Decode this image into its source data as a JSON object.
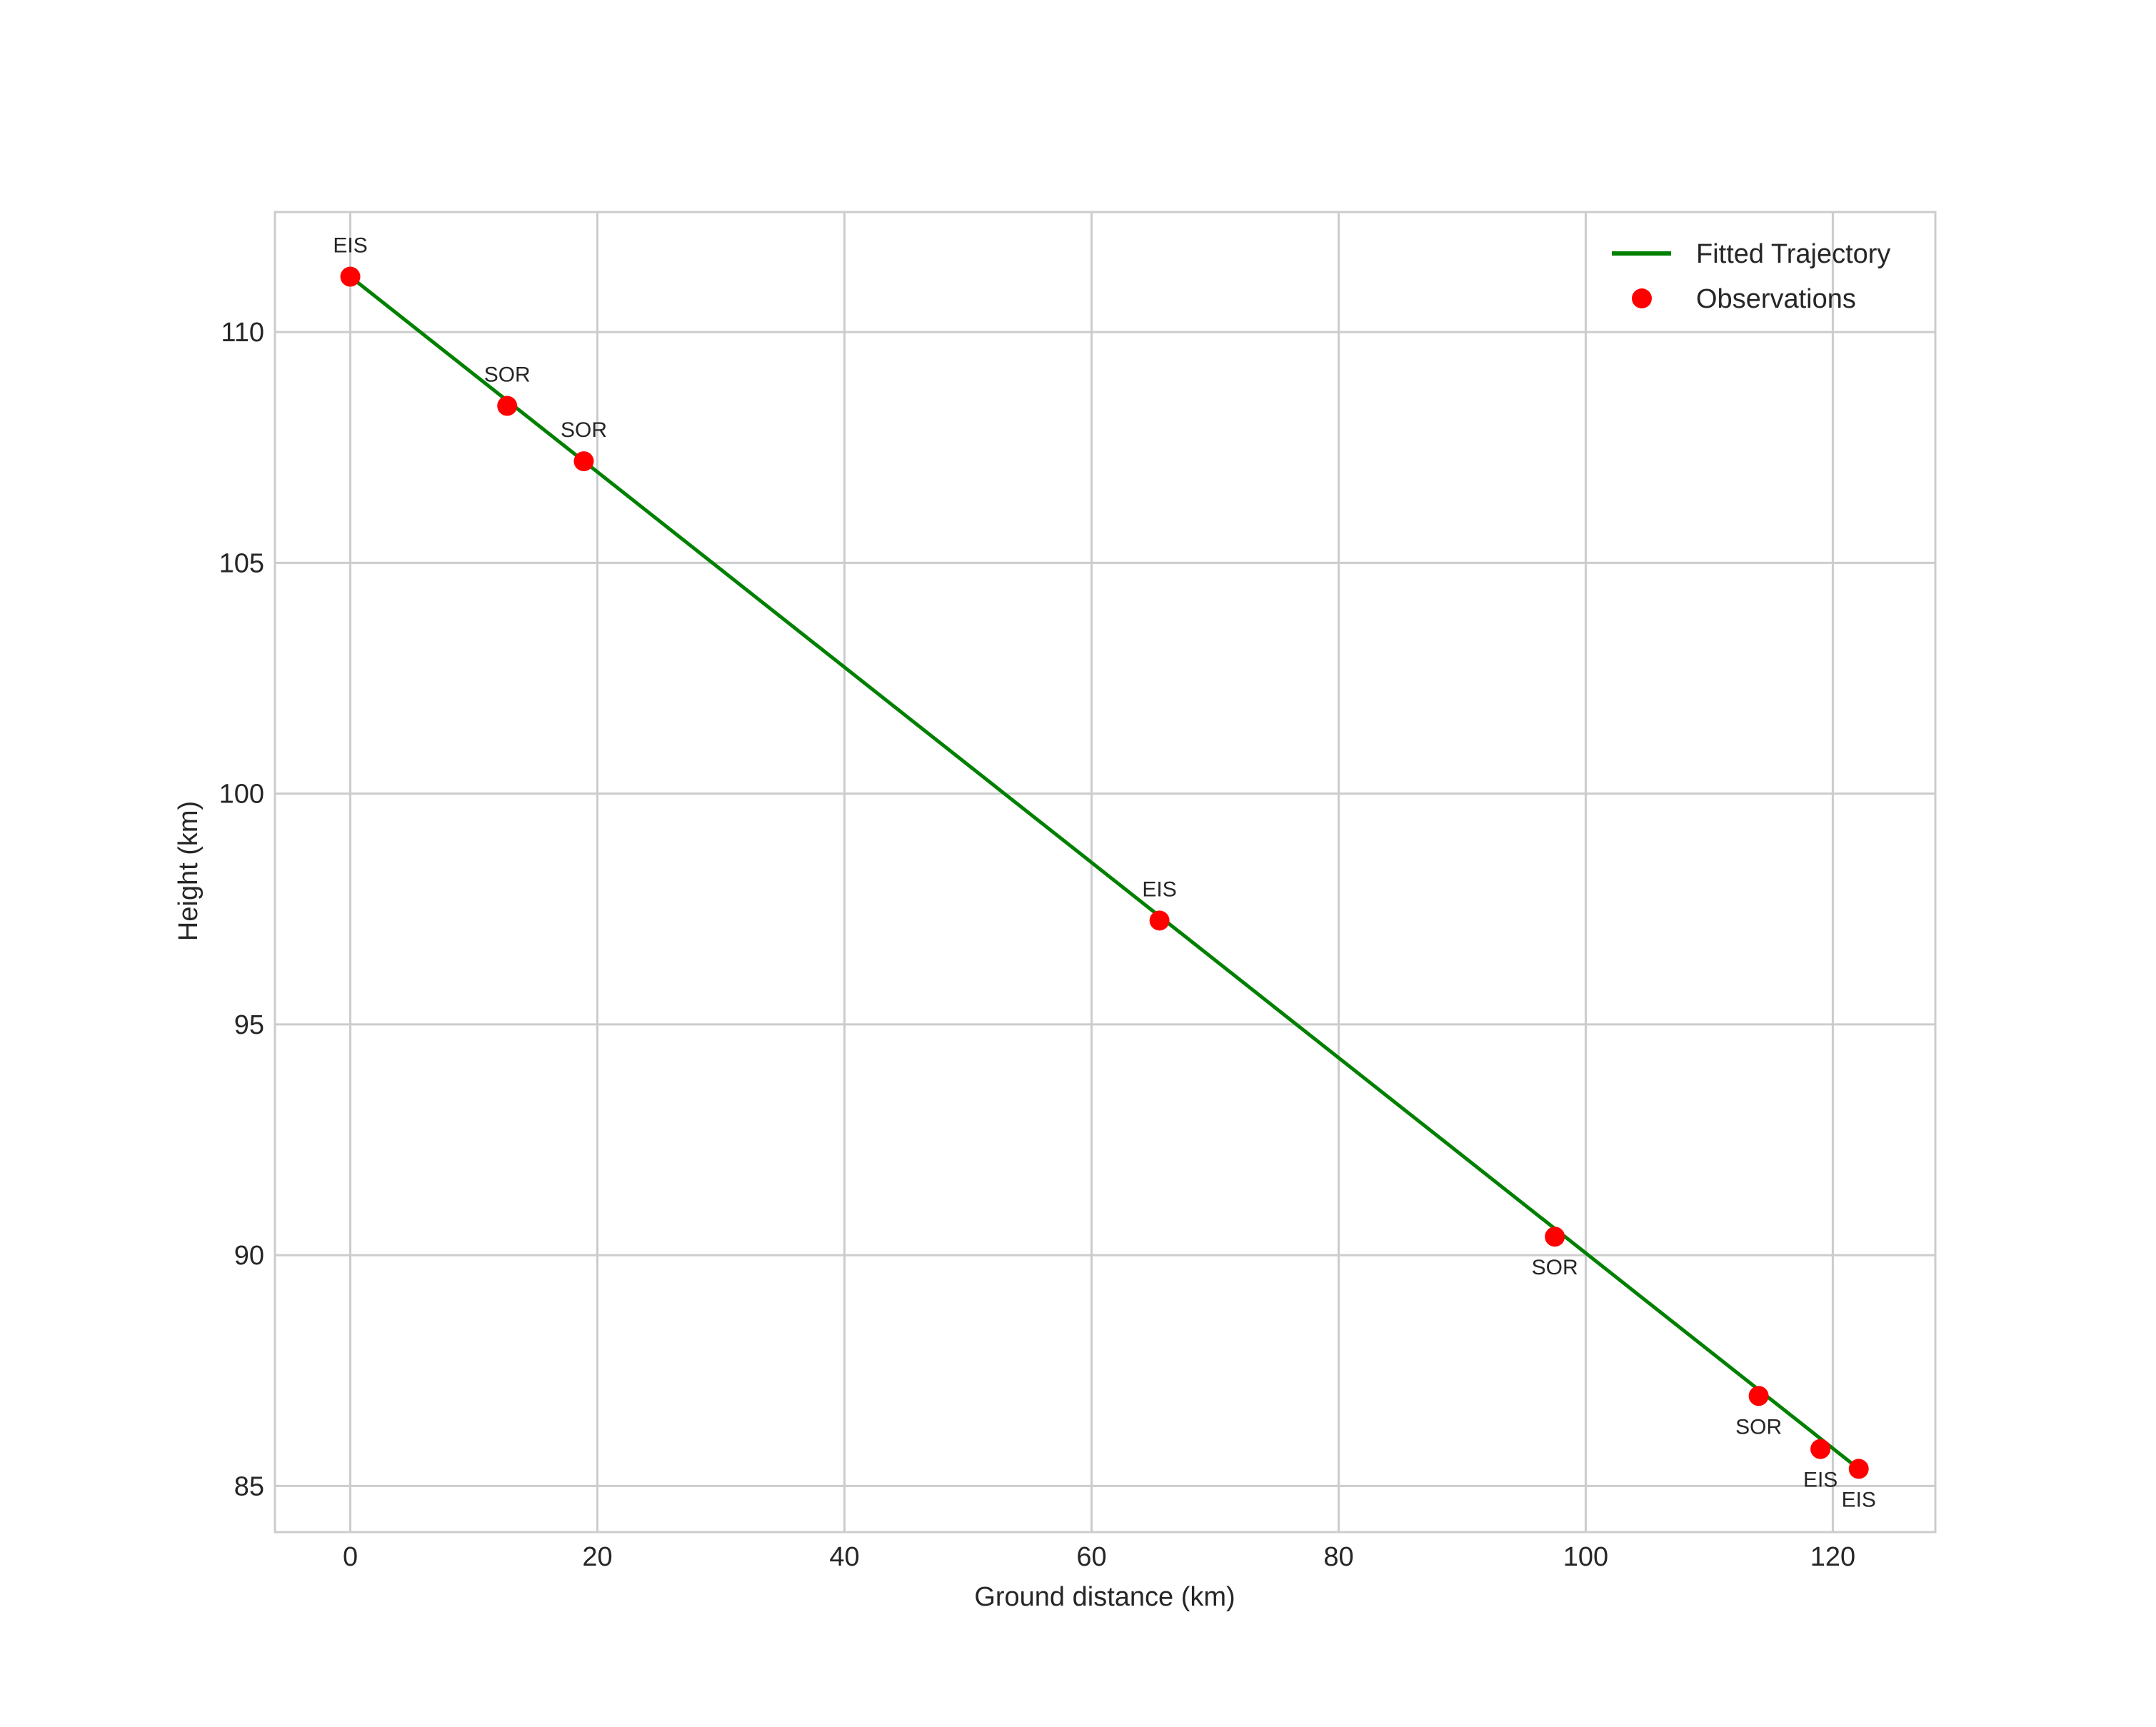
{
  "chart_data": {
    "type": "line",
    "title": "",
    "xlabel": "Ground distance (km)",
    "ylabel": "Height (km)",
    "xlim": [
      -6.1,
      128.3
    ],
    "ylim": [
      84.0,
      112.6
    ],
    "xticks": [
      0,
      20,
      40,
      60,
      80,
      100,
      120
    ],
    "yticks": [
      85,
      90,
      95,
      100,
      105,
      110
    ],
    "grid": true,
    "legend_position": "upper right",
    "series": [
      {
        "name": "Fitted Trajectory",
        "kind": "line",
        "color": "#008000",
        "x": [
          0.0,
          122.1
        ],
        "y": [
          111.2,
          85.37
        ]
      },
      {
        "name": "Observations",
        "kind": "scatter",
        "color": "#ff0000",
        "points": [
          {
            "x": 0.0,
            "y": 111.2,
            "label": "EIS",
            "label_pos": "above"
          },
          {
            "x": 12.7,
            "y": 108.4,
            "label": "SOR",
            "label_pos": "above"
          },
          {
            "x": 18.9,
            "y": 107.2,
            "label": "SOR",
            "label_pos": "above"
          },
          {
            "x": 65.5,
            "y": 97.25,
            "label": "EIS",
            "label_pos": "above"
          },
          {
            "x": 97.5,
            "y": 90.4,
            "label": "SOR",
            "label_pos": "below"
          },
          {
            "x": 114.0,
            "y": 86.95,
            "label": "SOR",
            "label_pos": "below"
          },
          {
            "x": 119.0,
            "y": 85.8,
            "label": "EIS",
            "label_pos": "below"
          },
          {
            "x": 122.1,
            "y": 85.37,
            "label": "EIS",
            "label_pos": "below"
          }
        ]
      }
    ]
  },
  "legend": {
    "items": [
      {
        "label": "Fitted Trajectory",
        "marker": "line",
        "color": "#008000"
      },
      {
        "label": "Observations",
        "marker": "dot",
        "color": "#ff0000"
      }
    ]
  },
  "colors": {
    "grid": "#cccccc",
    "text": "#262626",
    "line": "#008000",
    "marker": "#ff0000"
  }
}
